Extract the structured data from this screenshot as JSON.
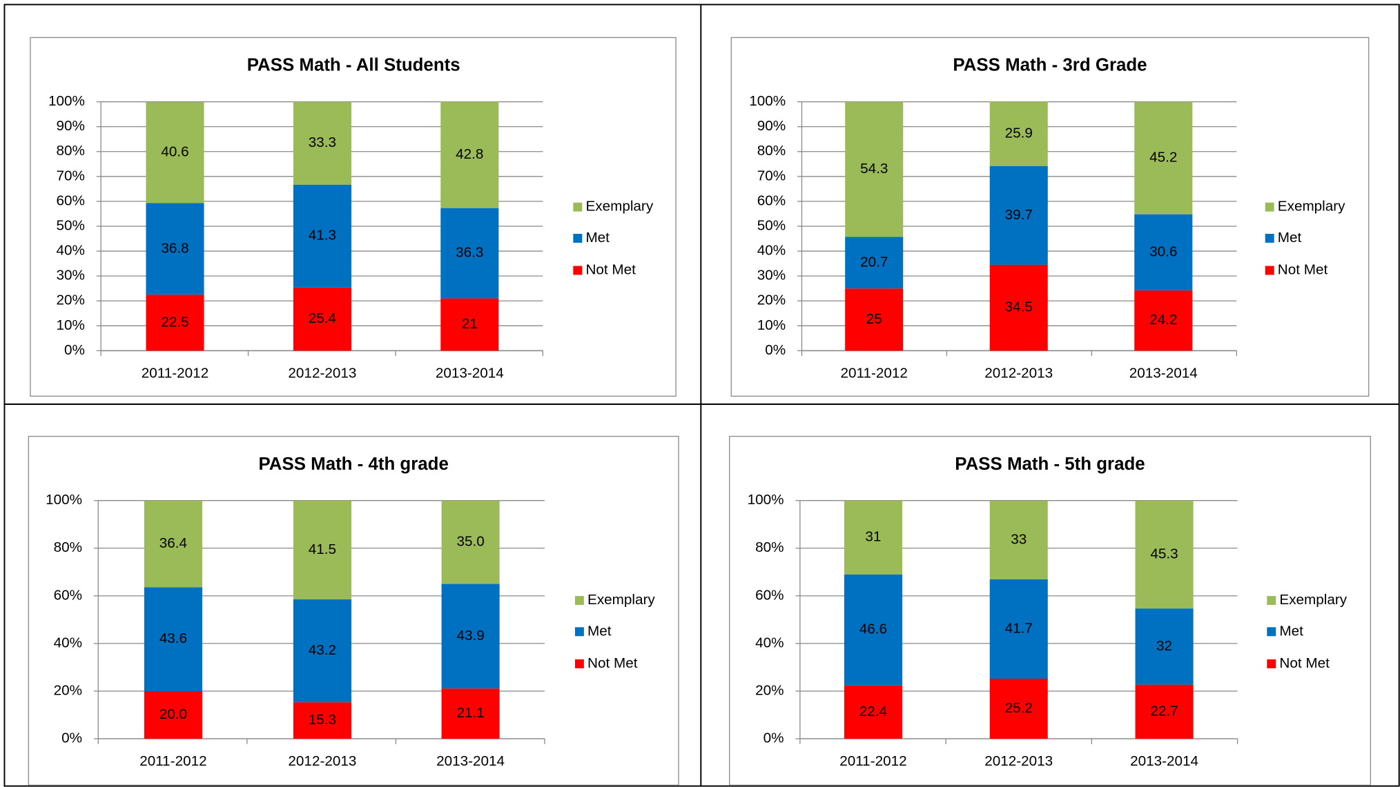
{
  "chart_data": [
    {
      "type": "bar",
      "stacked": true,
      "title": "PASS Math - All Students",
      "categories": [
        "2011-2012",
        "2012-2013",
        "2013-2014"
      ],
      "series": [
        {
          "name": "Not Met",
          "color": "#ff0000",
          "values": [
            22.5,
            25.4,
            21
          ]
        },
        {
          "name": "Met",
          "color": "#0070c0",
          "values": [
            36.8,
            41.3,
            36.3
          ]
        },
        {
          "name": "Exemplary",
          "color": "#9bbb59",
          "values": [
            40.6,
            33.3,
            42.8
          ]
        }
      ],
      "ylim": [
        0,
        100
      ],
      "yticks": [
        {
          "value": 0,
          "label": "0%"
        },
        {
          "value": 10,
          "label": "10%"
        },
        {
          "value": 20,
          "label": "20%"
        },
        {
          "value": 30,
          "label": "30%"
        },
        {
          "value": 40,
          "label": "40%"
        },
        {
          "value": 50,
          "label": "50%"
        },
        {
          "value": 60,
          "label": "60%"
        },
        {
          "value": 70,
          "label": "70%"
        },
        {
          "value": 80,
          "label": "80%"
        },
        {
          "value": 90,
          "label": "90%"
        },
        {
          "value": 100,
          "label": "100%"
        }
      ],
      "grid": true,
      "legend": "right"
    },
    {
      "type": "bar",
      "stacked": true,
      "title": "PASS Math - 3rd Grade",
      "categories": [
        "2011-2012",
        "2012-2013",
        "2013-2014"
      ],
      "series": [
        {
          "name": "Not Met",
          "color": "#ff0000",
          "values": [
            25,
            34.5,
            24.2
          ]
        },
        {
          "name": "Met",
          "color": "#0070c0",
          "values": [
            20.7,
            39.7,
            30.6
          ]
        },
        {
          "name": "Exemplary",
          "color": "#9bbb59",
          "values": [
            54.3,
            25.9,
            45.2
          ]
        }
      ],
      "ylim": [
        0,
        100
      ],
      "yticks": [
        {
          "value": 0,
          "label": "0%"
        },
        {
          "value": 10,
          "label": "10%"
        },
        {
          "value": 20,
          "label": "20%"
        },
        {
          "value": 30,
          "label": "30%"
        },
        {
          "value": 40,
          "label": "40%"
        },
        {
          "value": 50,
          "label": "50%"
        },
        {
          "value": 60,
          "label": "60%"
        },
        {
          "value": 70,
          "label": "70%"
        },
        {
          "value": 80,
          "label": "80%"
        },
        {
          "value": 90,
          "label": "90%"
        },
        {
          "value": 100,
          "label": "100%"
        }
      ],
      "grid": true,
      "legend": "right"
    },
    {
      "type": "bar",
      "stacked": true,
      "title": "PASS Math - 4th grade",
      "categories": [
        "2011-2012",
        "2012-2013",
        "2013-2014"
      ],
      "series": [
        {
          "name": "Not Met",
          "color": "#ff0000",
          "values": [
            20,
            15.3,
            21.1
          ],
          "value_labels": [
            "20.0",
            "15.3",
            "21.1"
          ]
        },
        {
          "name": "Met",
          "color": "#0070c0",
          "values": [
            43.6,
            43.2,
            43.9
          ],
          "value_labels": [
            "43.6",
            "43.2",
            "43.9"
          ]
        },
        {
          "name": "Exemplary",
          "color": "#9bbb59",
          "values": [
            36.4,
            41.5,
            35
          ],
          "value_labels": [
            "36.4",
            "41.5",
            "35.0"
          ]
        }
      ],
      "ylim": [
        0,
        100
      ],
      "yticks": [
        {
          "value": 0,
          "label": "0%"
        },
        {
          "value": 20,
          "label": "20%"
        },
        {
          "value": 40,
          "label": "40%"
        },
        {
          "value": 60,
          "label": "60%"
        },
        {
          "value": 80,
          "label": "80%"
        },
        {
          "value": 100,
          "label": "100%"
        }
      ],
      "grid": true,
      "legend": "right"
    },
    {
      "type": "bar",
      "stacked": true,
      "title": "PASS Math - 5th grade",
      "categories": [
        "2011-2012",
        "2012-2013",
        "2013-2014"
      ],
      "series": [
        {
          "name": "Not Met",
          "color": "#ff0000",
          "values": [
            22.4,
            25.2,
            22.7
          ]
        },
        {
          "name": "Met",
          "color": "#0070c0",
          "values": [
            46.6,
            41.7,
            32
          ]
        },
        {
          "name": "Exemplary",
          "color": "#9bbb59",
          "values": [
            31,
            33,
            45.3
          ]
        }
      ],
      "ylim": [
        0,
        100
      ],
      "yticks": [
        {
          "value": 0,
          "label": "0%"
        },
        {
          "value": 20,
          "label": "20%"
        },
        {
          "value": 40,
          "label": "40%"
        },
        {
          "value": 60,
          "label": "60%"
        },
        {
          "value": 80,
          "label": "80%"
        },
        {
          "value": 100,
          "label": "100%"
        }
      ],
      "grid": true,
      "legend": "right"
    }
  ]
}
